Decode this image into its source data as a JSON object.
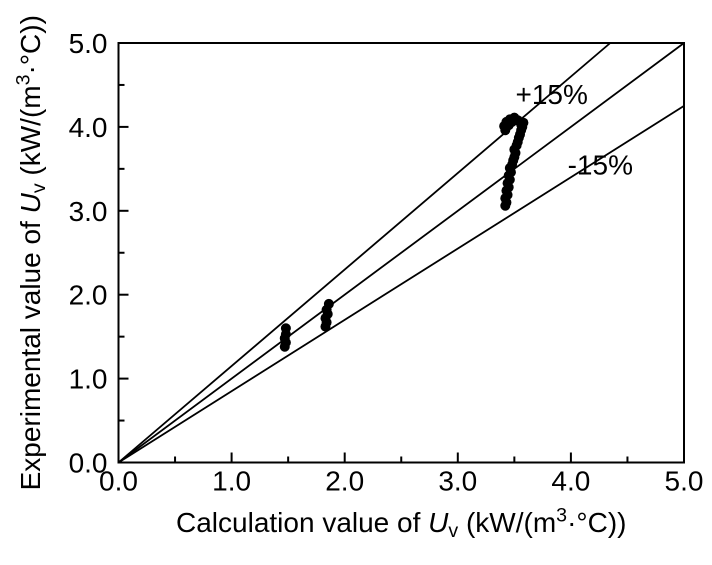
{
  "figure": {
    "background_color": "#ffffff",
    "ink_color": "#000000"
  },
  "chart_data": {
    "type": "scatter",
    "title": "",
    "xlabel_parts": [
      {
        "t": "Calculation value of "
      },
      {
        "t": "U",
        "i": true
      },
      {
        "t": "v",
        "sub": true
      },
      {
        "t": " (kW/(m"
      },
      {
        "t": "3",
        "sup": true
      },
      {
        "t": "·°C))"
      }
    ],
    "ylabel_parts": [
      {
        "t": "Experimental value of "
      },
      {
        "t": "U",
        "i": true
      },
      {
        "t": "v",
        "sub": true
      },
      {
        "t": " (kW/(m"
      },
      {
        "t": "3",
        "sup": true
      },
      {
        "t": "·°C))"
      }
    ],
    "xlim": [
      0,
      5
    ],
    "ylim": [
      0,
      5
    ],
    "x_ticks": {
      "values": [
        0,
        1,
        2,
        3,
        4,
        5
      ],
      "labels": [
        "0.0",
        "1.0",
        "2.0",
        "3.0",
        "4.0",
        "5.0"
      ],
      "minor_step": 0.5
    },
    "y_ticks": {
      "values": [
        0,
        1,
        2,
        3,
        4,
        5
      ],
      "labels": [
        "0.0",
        "1.0",
        "2.0",
        "3.0",
        "4.0",
        "5.0"
      ],
      "minor_step": 0.5
    },
    "grid": false,
    "legend": null,
    "reference_lines": [
      {
        "name": "plus-15-percent",
        "slope": 1.15
      },
      {
        "name": "equality",
        "slope": 1.0
      },
      {
        "name": "minus-15-percent",
        "slope": 0.85
      }
    ],
    "annotations": [
      {
        "name": "plus-15",
        "text": "+15%",
        "x": 3.83,
        "y": 4.27
      },
      {
        "name": "minus-15",
        "text": "-15%",
        "x": 4.26,
        "y": 3.43
      }
    ],
    "marker": {
      "shape": "circle",
      "radius_px": 5,
      "color": "#000000"
    },
    "series": [
      {
        "name": "experimental-vs-calculated",
        "points": [
          [
            1.47,
            1.38
          ],
          [
            1.48,
            1.43
          ],
          [
            1.47,
            1.48
          ],
          [
            1.48,
            1.53
          ],
          [
            1.48,
            1.6
          ],
          [
            1.83,
            1.62
          ],
          [
            1.84,
            1.67
          ],
          [
            1.83,
            1.72
          ],
          [
            1.85,
            1.77
          ],
          [
            1.84,
            1.82
          ],
          [
            1.86,
            1.89
          ],
          [
            3.42,
            3.06
          ],
          [
            3.43,
            3.1
          ],
          [
            3.42,
            3.15
          ],
          [
            3.44,
            3.19
          ],
          [
            3.43,
            3.24
          ],
          [
            3.45,
            3.28
          ],
          [
            3.44,
            3.33
          ],
          [
            3.46,
            3.37
          ],
          [
            3.45,
            3.42
          ],
          [
            3.47,
            3.46
          ],
          [
            3.46,
            3.51
          ],
          [
            3.48,
            3.55
          ],
          [
            3.49,
            3.6
          ],
          [
            3.5,
            3.64
          ],
          [
            3.51,
            3.69
          ],
          [
            3.5,
            3.73
          ],
          [
            3.52,
            3.78
          ],
          [
            3.53,
            3.82
          ],
          [
            3.54,
            3.87
          ],
          [
            3.55,
            3.91
          ],
          [
            3.56,
            3.96
          ],
          [
            3.57,
            4.0
          ],
          [
            3.58,
            4.05
          ],
          [
            3.5,
            4.11
          ],
          [
            3.46,
            4.09
          ],
          [
            3.43,
            4.06
          ],
          [
            3.41,
            4.01
          ],
          [
            3.42,
            3.96
          ],
          [
            3.45,
            4.02
          ],
          [
            3.48,
            4.06
          ],
          [
            3.53,
            4.08
          ],
          [
            3.56,
            4.03
          ]
        ]
      }
    ]
  }
}
